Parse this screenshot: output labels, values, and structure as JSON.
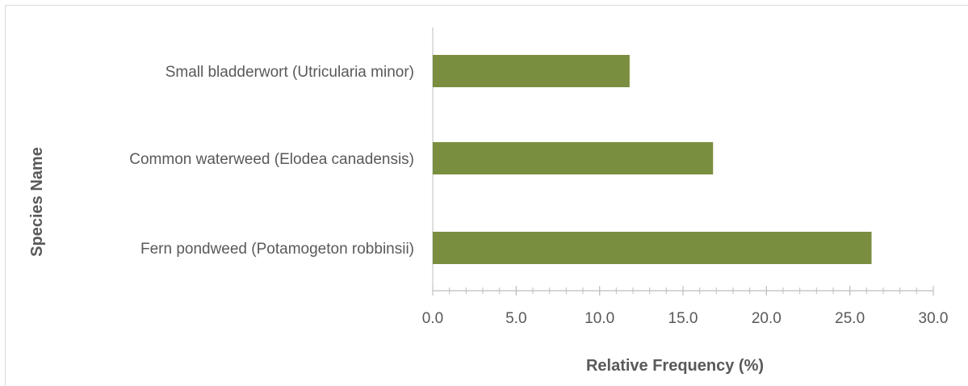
{
  "chart_data": {
    "type": "bar",
    "orientation": "horizontal",
    "title": "",
    "categories": [
      "Small bladderwort (Utricularia minor)",
      "Common waterweed (Elodea canadensis)",
      "Fern pondweed (Potamogeton robbinsii)"
    ],
    "values": [
      11.8,
      16.8,
      26.3
    ],
    "xlabel": "Relative Frequency (%)",
    "ylabel": "Species Name",
    "xlim": [
      0,
      30
    ],
    "x_ticks": [
      "0.0",
      "5.0",
      "10.0",
      "15.0",
      "20.0",
      "25.0",
      "30.0"
    ],
    "x_tick_values": [
      0,
      5,
      10,
      15,
      20,
      25,
      30
    ],
    "minor_tick_step": 1,
    "bar_color": "#7a8e3f",
    "axis_color": "#bfbfbf",
    "text_color": "#595959",
    "grid": false,
    "legend": "none"
  }
}
